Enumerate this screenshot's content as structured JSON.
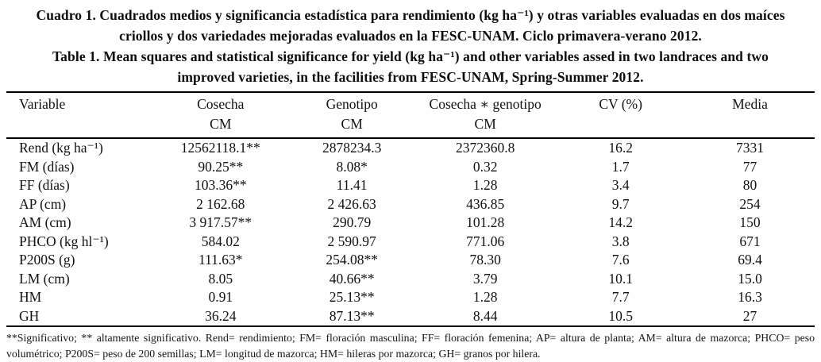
{
  "captions": {
    "spanish_line1": "Cuadro 1. Cuadrados medios y significancia estadística para rendimiento (kg ha⁻¹) y otras variables evaluadas en dos maíces",
    "spanish_line2": "criollos y dos variedades mejoradas evaluados en la FESC-UNAM. Ciclo primavera-verano 2012.",
    "english_line1": "Table 1. Mean squares and statistical significance for yield (kg ha⁻¹) and other variables assed in two landraces and two",
    "english_line2": "improved varieties, in the facilities from FESC-UNAM, Spring-Summer 2012."
  },
  "table": {
    "headers": [
      {
        "top": "Variable",
        "bottom": ""
      },
      {
        "top": "Cosecha",
        "bottom": "CM"
      },
      {
        "top": "Genotipo",
        "bottom": "CM"
      },
      {
        "top": "Cosecha ∗ genotipo",
        "bottom": "CM"
      },
      {
        "top": "CV (%)",
        "bottom": ""
      },
      {
        "top": "Media",
        "bottom": ""
      }
    ],
    "rows": [
      {
        "variable": "Rend (kg ha⁻¹)",
        "cosecha": "12562118.1**",
        "genotipo": "2878234.3",
        "interaccion": "2372360.8",
        "cv": "16.2",
        "media": "7331"
      },
      {
        "variable": "FM (días)",
        "cosecha": "90.25**",
        "genotipo": "8.08*",
        "interaccion": "0.32",
        "cv": "1.7",
        "media": "77"
      },
      {
        "variable": "FF (días)",
        "cosecha": "103.36**",
        "genotipo": "11.41",
        "interaccion": "1.28",
        "cv": "3.4",
        "media": "80"
      },
      {
        "variable": "AP (cm)",
        "cosecha": "2 162.68",
        "genotipo": "2 426.63",
        "interaccion": "436.85",
        "cv": "9.7",
        "media": "254"
      },
      {
        "variable": "AM (cm)",
        "cosecha": "3 917.57**",
        "genotipo": "290.79",
        "interaccion": "101.28",
        "cv": "14.2",
        "media": "150"
      },
      {
        "variable": "PHCO (kg hl⁻¹)",
        "cosecha": "584.02",
        "genotipo": "2 590.97",
        "interaccion": "771.06",
        "cv": "3.8",
        "media": "671"
      },
      {
        "variable": "P200S (g)",
        "cosecha": "111.63*",
        "genotipo": "254.08**",
        "interaccion": "78.30",
        "cv": "7.6",
        "media": "69.4"
      },
      {
        "variable": "LM (cm)",
        "cosecha": "8.05",
        "genotipo": "40.66**",
        "interaccion": "3.79",
        "cv": "10.1",
        "media": "15.0"
      },
      {
        "variable": "HM",
        "cosecha": "0.91",
        "genotipo": "25.13**",
        "interaccion": "1.28",
        "cv": "7.7",
        "media": "16.3"
      },
      {
        "variable": "GH",
        "cosecha": "36.24",
        "genotipo": "87.13**",
        "interaccion": "8.44",
        "cv": "10.5",
        "media": "27"
      }
    ]
  },
  "footnote": "**Significativo; ** altamente significativo. Rend= rendimiento; FM= floración masculina; FF= floración femenina; AP= altura de planta; AM= altura de mazorca; PHCO= peso volumétrico; P200S= peso de 200 semillas; LM= longitud de mazorca; HM= hileras por mazorca; GH= granos por hilera."
}
